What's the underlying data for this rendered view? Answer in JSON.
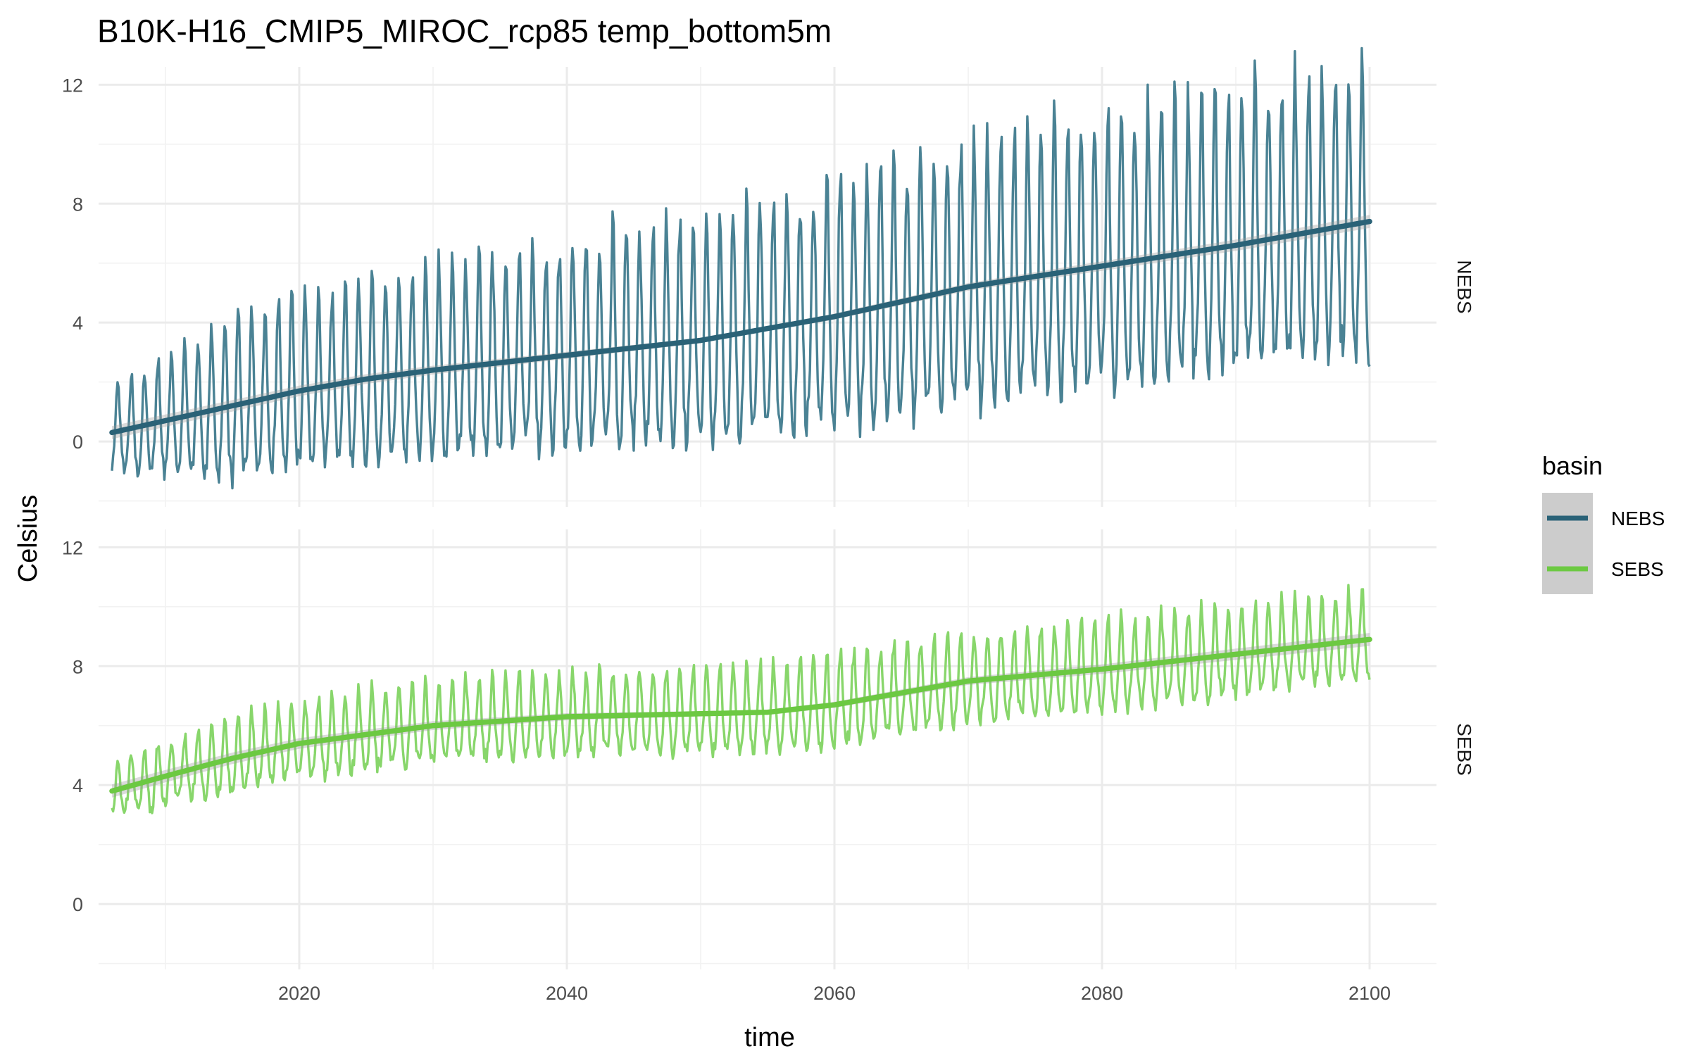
{
  "chart_data": {
    "type": "line",
    "title": "B10K-H16_CMIP5_MIROC_rcp85 temp_bottom5m",
    "xlabel": "time",
    "ylabel": "Celsius",
    "xlim": [
      2005,
      2105
    ],
    "ylim": [
      -2.2,
      12.6
    ],
    "x_ticks": [
      2020,
      2040,
      2060,
      2080,
      2100
    ],
    "y_ticks": [
      0,
      4,
      8,
      12
    ],
    "grid": true,
    "legend": {
      "title": "basin",
      "position": "right"
    },
    "facets": [
      {
        "name": "NEBS",
        "color": "#2a6277",
        "raw_color": "#4a8294",
        "amplitude_envelope": [
          [
            2006,
            3.0
          ],
          [
            2015,
            5.8
          ],
          [
            2040,
            7.5
          ],
          [
            2070,
            9.5
          ],
          [
            2100,
            10.5
          ]
        ],
        "smooth": {
          "x": [
            2006,
            2010,
            2015,
            2020,
            2025,
            2030,
            2040,
            2050,
            2055,
            2060,
            2065,
            2070,
            2080,
            2090,
            2100
          ],
          "y": [
            0.3,
            0.7,
            1.2,
            1.7,
            2.1,
            2.4,
            2.9,
            3.4,
            3.8,
            4.2,
            4.7,
            5.2,
            5.9,
            6.6,
            7.4
          ]
        }
      },
      {
        "name": "SEBS",
        "color": "#6cc942",
        "raw_color": "#88d66b",
        "amplitude_envelope": [
          [
            2006,
            2.0
          ],
          [
            2015,
            2.6
          ],
          [
            2040,
            3.1
          ],
          [
            2070,
            3.3
          ],
          [
            2100,
            3.2
          ]
        ],
        "smooth": {
          "x": [
            2006,
            2010,
            2015,
            2020,
            2025,
            2030,
            2040,
            2050,
            2055,
            2060,
            2065,
            2070,
            2080,
            2090,
            2100
          ],
          "y": [
            3.8,
            4.3,
            4.9,
            5.4,
            5.7,
            6.0,
            6.3,
            6.4,
            6.45,
            6.7,
            7.1,
            7.5,
            7.9,
            8.4,
            8.9
          ]
        }
      }
    ]
  }
}
